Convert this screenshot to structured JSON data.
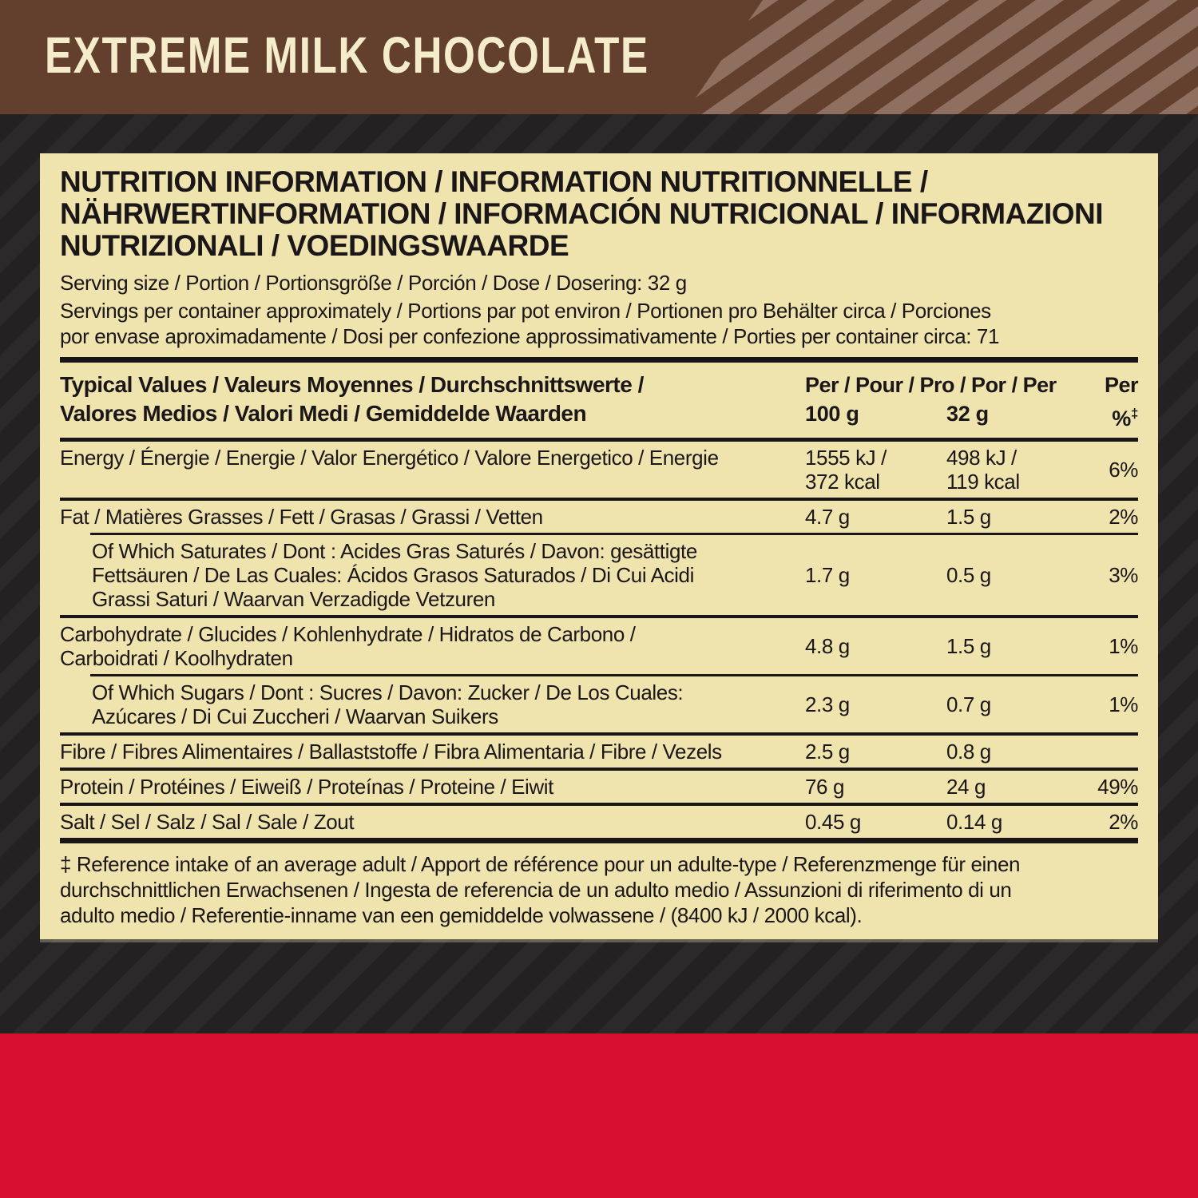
{
  "banner": {
    "title": "EXTREME MILK CHOCOLATE"
  },
  "panel": {
    "heading": "NUTRITION INFORMATION / INFORMATION NUTRITIONNELLE /\nNÄHRWERTINFORMATION / INFORMACIÓN NUTRICIONAL / INFORMAZIONI\nNUTRIZIONALI / VOEDINGSWAARDE",
    "serving_size": "Serving size / Portion / Portionsgröße / Porción / Dose / Dosering: 32 g",
    "servings_per_container": "Servings per container approximately / Portions par pot environ / Portionen pro Behälter circa / Porciones\npor envase aproximadamente / Dosi per confezione approssimativamente / Porties per container circa: 71",
    "footnote": "‡ Reference intake of an average adult / Apport de référence pour un adulte-type / Referenzmenge für einen\ndurchschnittlichen Erwachsenen / Ingesta de referencia de un adulto medio / Assunzioni di riferimento di un\nadulto medio / Referentie-inname van een gemiddelde volwassene / (8400 kJ / 2000 kcal)."
  },
  "table": {
    "header_label": "Typical Values / Valeurs Moyennes / Durchschnittswerte /\nValores Medios / Valori Medi / Gemiddelde Waarden",
    "per_left": "Per / Pour / Pro / Por / Per",
    "per_right": "Per",
    "col_100g": "100 g",
    "col_32g": "32 g",
    "col_percent": "%",
    "dagger": "‡",
    "rows": [
      {
        "label": "Energy / Énergie / Energie / Valor Energético / Valore Energetico / Energie",
        "per100": "1555 kJ /\n372 kcal",
        "per32": "498 kJ /\n119 kcal",
        "ri": "6%"
      },
      {
        "label": "Fat / Matières Grasses / Fett / Grasas / Grassi / Vetten",
        "per100": "4.7 g",
        "per32": "1.5 g",
        "ri": "2%"
      },
      {
        "label": "Of Which Saturates / Dont : Acides Gras Saturés / Davon: gesättigte\nFettsäuren / De Las Cuales: Ácidos Grasos Saturados / Di Cui Acidi\nGrassi Saturi / Waarvan Verzadigde Vetzuren",
        "per100": "1.7 g",
        "per32": "0.5 g",
        "ri": "3%"
      },
      {
        "label": "Carbohydrate / Glucides / Kohlenhydrate / Hidratos de Carbono /\nCarboidrati / Koolhydraten",
        "per100": "4.8 g",
        "per32": "1.5 g",
        "ri": "1%"
      },
      {
        "label": "Of Which Sugars / Dont : Sucres / Davon: Zucker / De Los Cuales:\nAzúcares / Di Cui Zuccheri / Waarvan Suikers",
        "per100": "2.3 g",
        "per32": "0.7 g",
        "ri": "1%"
      },
      {
        "label": "Fibre / Fibres Alimentaires / Ballaststoffe / Fibra Alimentaria / Fibre / Vezels",
        "per100": "2.5 g",
        "per32": "0.8 g",
        "ri": ""
      },
      {
        "label": "Protein / Protéines / Eiweiß / Proteínas / Proteine / Eiwit",
        "per100": "76 g",
        "per32": "24 g",
        "ri": "49%"
      },
      {
        "label": "Salt / Sel / Salz / Sal / Sale / Zout",
        "per100": "0.45 g",
        "per32": "0.14 g",
        "ri": "2%"
      }
    ]
  },
  "colors": {
    "banner_bg": "#63402d",
    "banner_stripe": "#8f6f60",
    "banner_text": "#f4ecca",
    "panel_bg": "#efe3ae",
    "text": "#1b1617",
    "rule": "#1a1516",
    "bg_base": "#242122",
    "bg_stripe": "#2c292b",
    "red_band": "#d50f2d"
  }
}
